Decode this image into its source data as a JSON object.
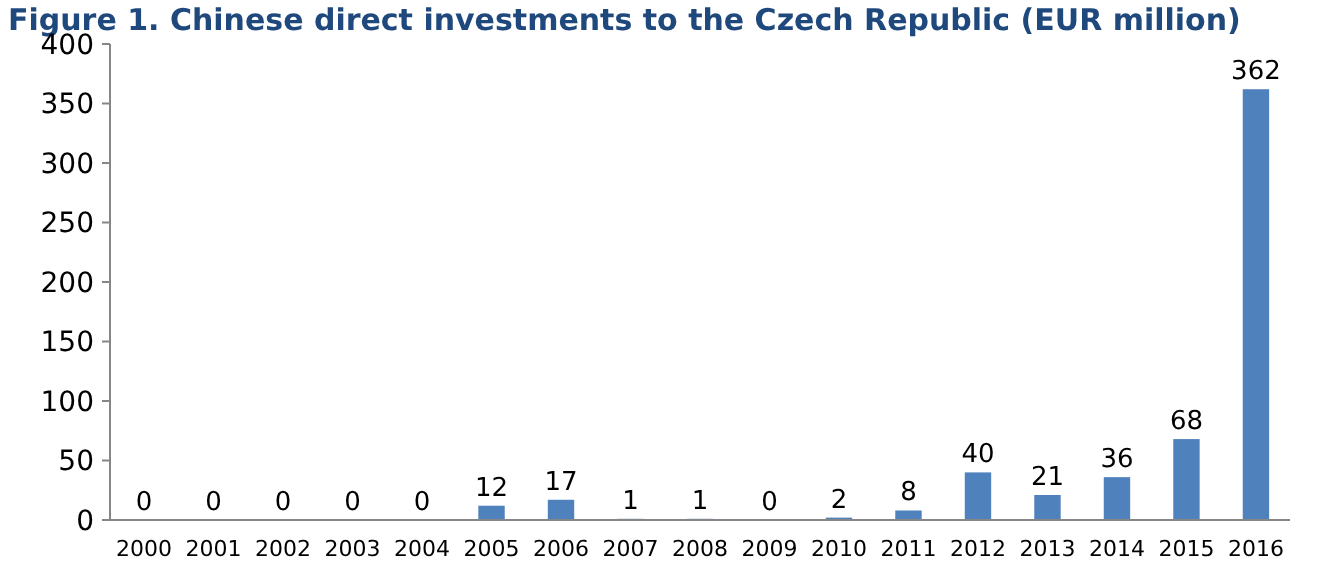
{
  "chart_data": {
    "type": "bar",
    "title": "Figure 1. Chinese direct investments to the Czech Republic (EUR million)",
    "categories": [
      "2000",
      "2001",
      "2002",
      "2003",
      "2004",
      "2005",
      "2006",
      "2007",
      "2008",
      "2009",
      "2010",
      "2011",
      "2012",
      "2013",
      "2014",
      "2015",
      "2016"
    ],
    "values": [
      0,
      0,
      0,
      0,
      0,
      12,
      17,
      1,
      1,
      0,
      2,
      8,
      40,
      21,
      36,
      68,
      362
    ],
    "color": "#4f81bd",
    "ylim": [
      0,
      400
    ],
    "yticks": [
      0,
      50,
      100,
      150,
      200,
      250,
      300,
      350,
      400
    ],
    "grid": false,
    "data_labels": true
  }
}
